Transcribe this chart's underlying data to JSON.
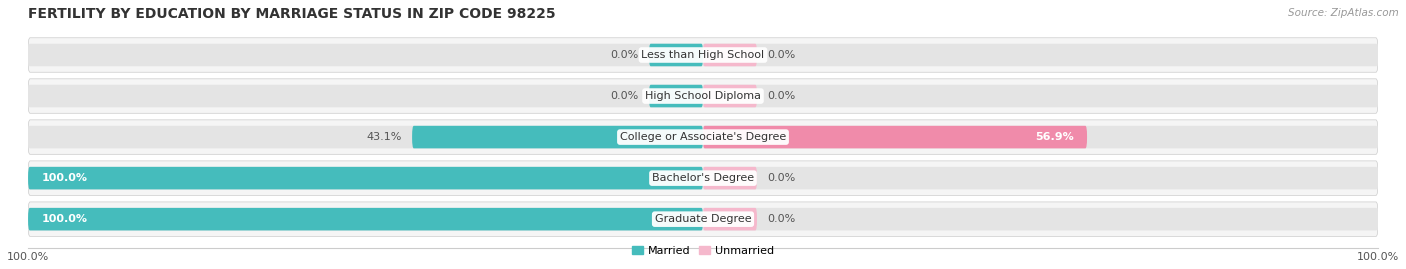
{
  "title": "FERTILITY BY EDUCATION BY MARRIAGE STATUS IN ZIP CODE 98225",
  "source": "Source: ZipAtlas.com",
  "categories": [
    "Less than High School",
    "High School Diploma",
    "College or Associate's Degree",
    "Bachelor's Degree",
    "Graduate Degree"
  ],
  "married": [
    0.0,
    0.0,
    43.1,
    100.0,
    100.0
  ],
  "unmarried": [
    0.0,
    0.0,
    56.9,
    0.0,
    0.0
  ],
  "married_color": "#45BCBC",
  "unmarried_color": "#F08BAA",
  "unmarried_small_color": "#F5B8CC",
  "bar_bg_color": "#E4E4E4",
  "row_bg_color": "#F5F5F5",
  "title_fontsize": 10,
  "source_fontsize": 7.5,
  "label_fontsize": 8,
  "bar_label_fontsize": 8,
  "xlim": [
    -100,
    100
  ],
  "figsize": [
    14.06,
    2.69
  ],
  "dpi": 100,
  "small_bar_width": 8
}
